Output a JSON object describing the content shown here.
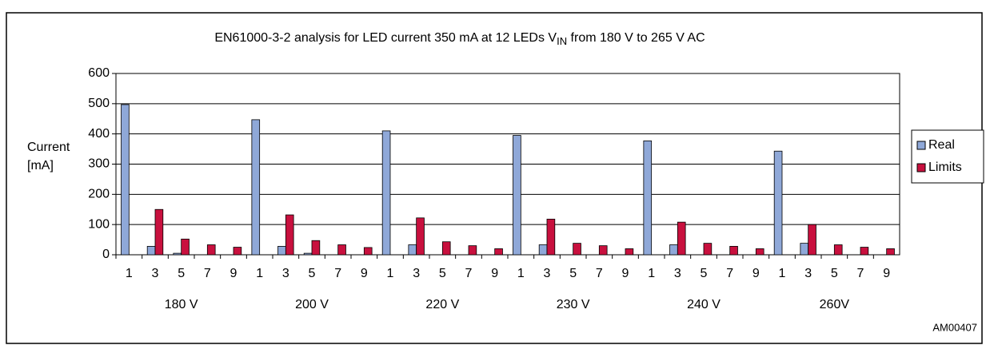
{
  "chart_data": {
    "type": "bar",
    "title": [
      "EN61000-3-2 analysis for LED current 350 mA at 12 LEDs V",
      "IN",
      " from 180 V to 265 V AC"
    ],
    "ylabel": [
      "Current",
      "[mA]"
    ],
    "annotation": "AM00407",
    "groups": [
      "180 V",
      "200 V",
      "220 V",
      "230 V",
      "240 V",
      "260V"
    ],
    "categories": [
      "1",
      "3",
      "5",
      "7",
      "9",
      "1",
      "3",
      "5",
      "7",
      "9",
      "1",
      "3",
      "5",
      "7",
      "9",
      "1",
      "3",
      "5",
      "7",
      "9",
      "1",
      "3",
      "5",
      "7",
      "9",
      "1",
      "3",
      "5",
      "7",
      "9"
    ],
    "series": [
      {
        "name": "Real",
        "color": "#8fa8d8",
        "values": [
          497,
          28,
          5,
          0,
          0,
          447,
          28,
          5,
          0,
          0,
          410,
          33,
          0,
          0,
          0,
          395,
          33,
          0,
          0,
          0,
          377,
          33,
          0,
          0,
          0,
          343,
          38,
          0,
          0,
          0
        ]
      },
      {
        "name": "Limits",
        "color": "#c8103e",
        "values": [
          null,
          150,
          52,
          33,
          25,
          null,
          132,
          47,
          33,
          24,
          null,
          122,
          43,
          30,
          20,
          null,
          118,
          38,
          30,
          20,
          null,
          108,
          38,
          28,
          20,
          null,
          100,
          33,
          25,
          20
        ]
      }
    ],
    "ylim": [
      0,
      600
    ],
    "yticks": [
      0,
      100,
      200,
      300,
      400,
      500,
      600
    ],
    "grid": true,
    "legend": "right"
  }
}
